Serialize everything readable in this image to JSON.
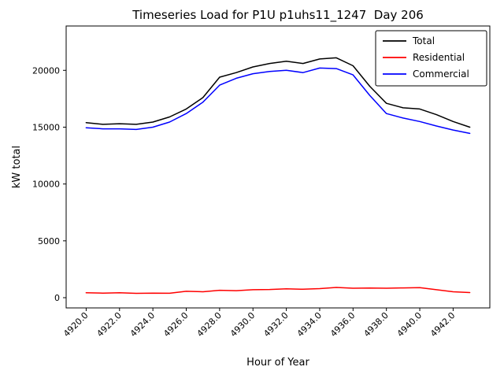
{
  "figure": {
    "background": "#ffffff"
  },
  "chart_data": {
    "type": "line",
    "title": "Timeseries Load for P1U p1uhs11_1247  Day 206",
    "xlabel": "Hour of Year",
    "ylabel": "kW total",
    "grid": false,
    "legend_position": "upper right",
    "xlim": [
      4918.8,
      4944.2
    ],
    "ylim": [
      -900,
      23900
    ],
    "x_ticks": [
      4920,
      4922,
      4924,
      4926,
      4928,
      4930,
      4932,
      4934,
      4936,
      4938,
      4940,
      4942
    ],
    "x_tick_labels": [
      "4920.0",
      "4922.0",
      "4924.0",
      "4926.0",
      "4928.0",
      "4930.0",
      "4932.0",
      "4934.0",
      "4936.0",
      "4938.0",
      "4940.0",
      "4942.0"
    ],
    "y_ticks": [
      0,
      5000,
      10000,
      15000,
      20000
    ],
    "y_tick_labels": [
      "0",
      "5000",
      "10000",
      "15000",
      "20000"
    ],
    "x": [
      4920,
      4921,
      4922,
      4923,
      4924,
      4925,
      4926,
      4927,
      4928,
      4929,
      4930,
      4931,
      4932,
      4933,
      4934,
      4935,
      4936,
      4937,
      4938,
      4939,
      4940,
      4941,
      4942,
      4943
    ],
    "series": [
      {
        "name": "Total",
        "color": "#000000",
        "values": [
          15400,
          15250,
          15300,
          15250,
          15450,
          15900,
          16600,
          17600,
          19400,
          19800,
          20300,
          20600,
          20800,
          20600,
          21000,
          21100,
          20400,
          18600,
          17100,
          16700,
          16600,
          16100,
          15500,
          15000
        ]
      },
      {
        "name": "Residential",
        "color": "#ff0000",
        "values": [
          430,
          400,
          430,
          380,
          400,
          390,
          560,
          520,
          650,
          620,
          700,
          720,
          780,
          740,
          800,
          900,
          830,
          850,
          830,
          860,
          880,
          700,
          520,
          450
        ]
      },
      {
        "name": "Commercial",
        "color": "#0000ff",
        "values": [
          14950,
          14850,
          14850,
          14800,
          15000,
          15450,
          16200,
          17200,
          18700,
          19300,
          19700,
          19900,
          20000,
          19800,
          20200,
          20150,
          19600,
          17800,
          16200,
          15800,
          15500,
          15100,
          14750,
          14450
        ]
      }
    ]
  }
}
